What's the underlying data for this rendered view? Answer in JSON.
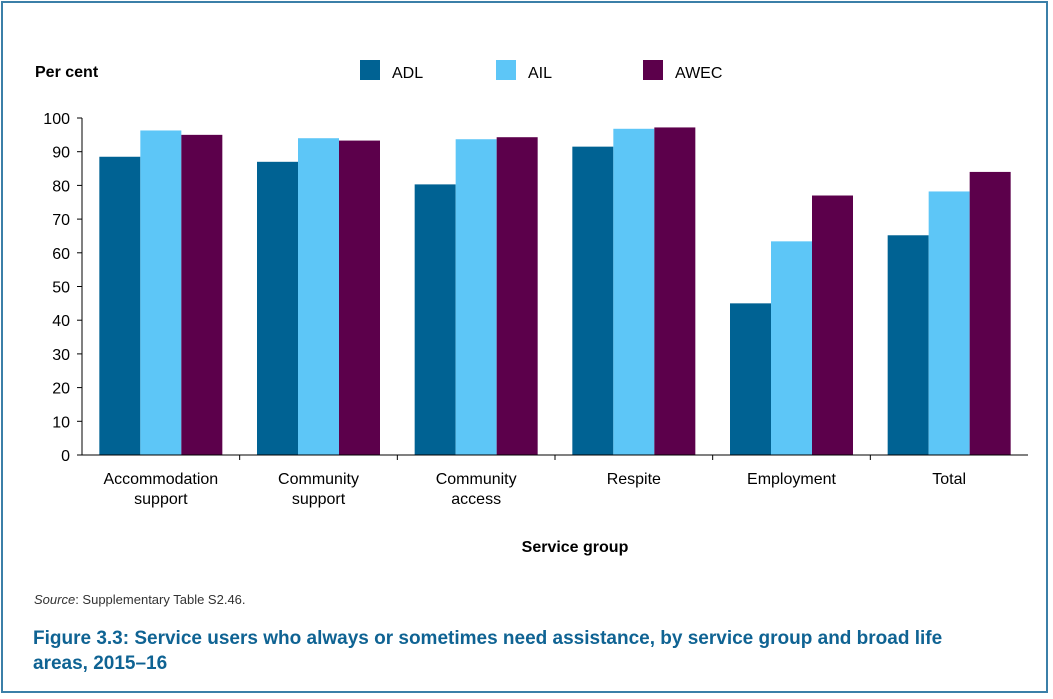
{
  "chart_data": {
    "type": "bar",
    "ylabel": "Per cent",
    "xlabel": "Service group",
    "ylim": [
      0,
      100
    ],
    "yticks": [
      0,
      10,
      20,
      30,
      40,
      50,
      60,
      70,
      80,
      90,
      100
    ],
    "grid": false,
    "legend_position": "top",
    "categories": [
      [
        "Accommodation",
        "support"
      ],
      [
        "Community",
        "support"
      ],
      [
        "Community",
        "access"
      ],
      [
        "Respite"
      ],
      [
        "Employment"
      ],
      [
        "Total"
      ]
    ],
    "series": [
      {
        "name": "ADL",
        "color": "#006293",
        "values": [
          88.5,
          87.0,
          80.3,
          91.5,
          45.0,
          65.2
        ]
      },
      {
        "name": "AIL",
        "color": "#5dc6f7",
        "values": [
          96.3,
          94.0,
          93.7,
          96.8,
          63.4,
          78.2
        ]
      },
      {
        "name": "AWEC",
        "color": "#5c004b",
        "values": [
          95.0,
          93.3,
          94.3,
          97.2,
          77.0,
          84.0
        ]
      }
    ]
  },
  "source": {
    "label": "Source",
    "text": ": Supplementary Table S2.46."
  },
  "caption": "Figure 3.3: Service users who always or sometimes need assistance, by service group and broad life areas, 2015–16"
}
